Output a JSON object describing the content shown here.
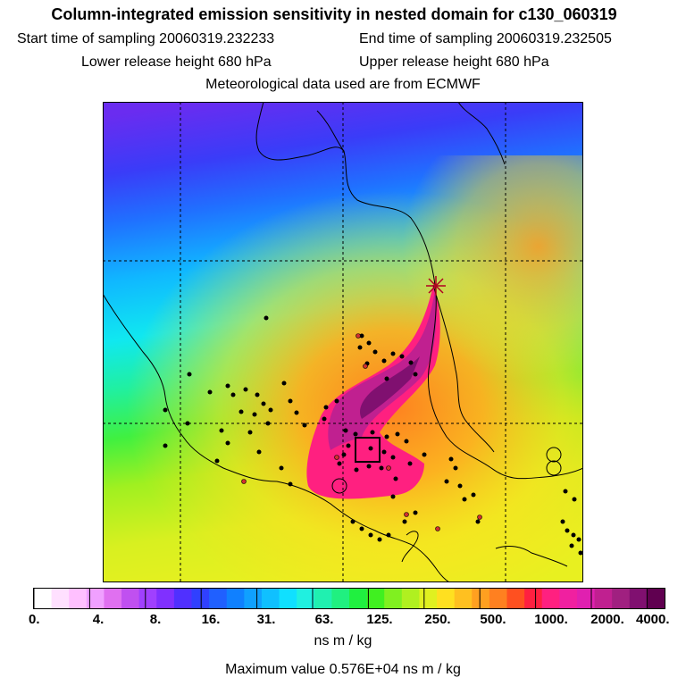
{
  "header": {
    "title": "Column-integrated emission sensitivity in nested domain for c130_060319",
    "start_label": "Start time of sampling 20060319.232233",
    "end_label": "End time of sampling 20060319.232505",
    "lower_label": "Lower release height  680 hPa",
    "upper_label": "Upper release height  680 hPa",
    "met_label": "Meteorological data used are from ECMWF"
  },
  "colorbar": {
    "tick_labels": [
      "0.",
      "4.",
      "8.",
      "16.",
      "31.",
      "63.",
      "125.",
      "250.",
      "500.",
      "1000.",
      "2000.",
      "4000."
    ],
    "units": "ns m / kg",
    "max_label": "Maximum value  0.576E+04 ns m / kg",
    "colors": [
      "#ffffff",
      "#ffe0ff",
      "#ffc0ff",
      "#f0a0ff",
      "#e070f0",
      "#c050f0",
      "#a040ff",
      "#8030ff",
      "#5030ff",
      "#3040ff",
      "#2060ff",
      "#1080ff",
      "#10a0ff",
      "#10c0ff",
      "#10e0ff",
      "#20f0e0",
      "#20f0b0",
      "#20f080",
      "#20f040",
      "#40f020",
      "#80f020",
      "#b0f020",
      "#e0f020",
      "#ffe020",
      "#ffc020",
      "#ffa020",
      "#ff8020",
      "#ff5020",
      "#ff2040",
      "#ff2080",
      "#f020a0",
      "#e020b0",
      "#c02090",
      "#a02080",
      "#801070",
      "#600050"
    ]
  },
  "map": {
    "grid_lat": [
      2
    ],
    "release_marker": "star-marker"
  }
}
